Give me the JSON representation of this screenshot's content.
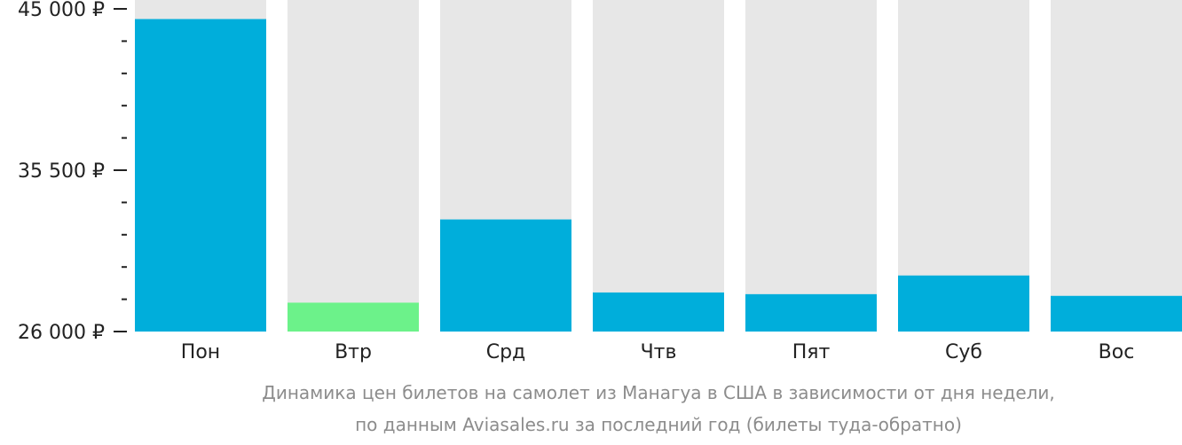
{
  "chart_data": {
    "type": "bar",
    "categories": [
      "Пон",
      "Втр",
      "Срд",
      "Чтв",
      "Пят",
      "Суб",
      "Вос"
    ],
    "values": [
      44400,
      27700,
      32600,
      28300,
      28200,
      29300,
      28100
    ],
    "highlight_index": 1,
    "ylim": [
      26000,
      45000
    ],
    "y_ticks": [
      {
        "value": 26000,
        "label": "26 000 ₽"
      },
      {
        "value": 35500,
        "label": "35 500 ₽"
      },
      {
        "value": 45000,
        "label": "45 000 ₽"
      }
    ],
    "minor_tick_count": 4,
    "colors": {
      "bar": "#00aedb",
      "highlight": "#6cf28a",
      "track": "#e7e7e7",
      "axis": "#222222",
      "caption": "#8c8c8c"
    }
  },
  "caption": {
    "line1": "Динамика цен билетов на самолет из Манагуа в США в зависимости от дня недели,",
    "line2": "по данным Aviasales.ru за последний год (билеты туда-обратно)"
  }
}
